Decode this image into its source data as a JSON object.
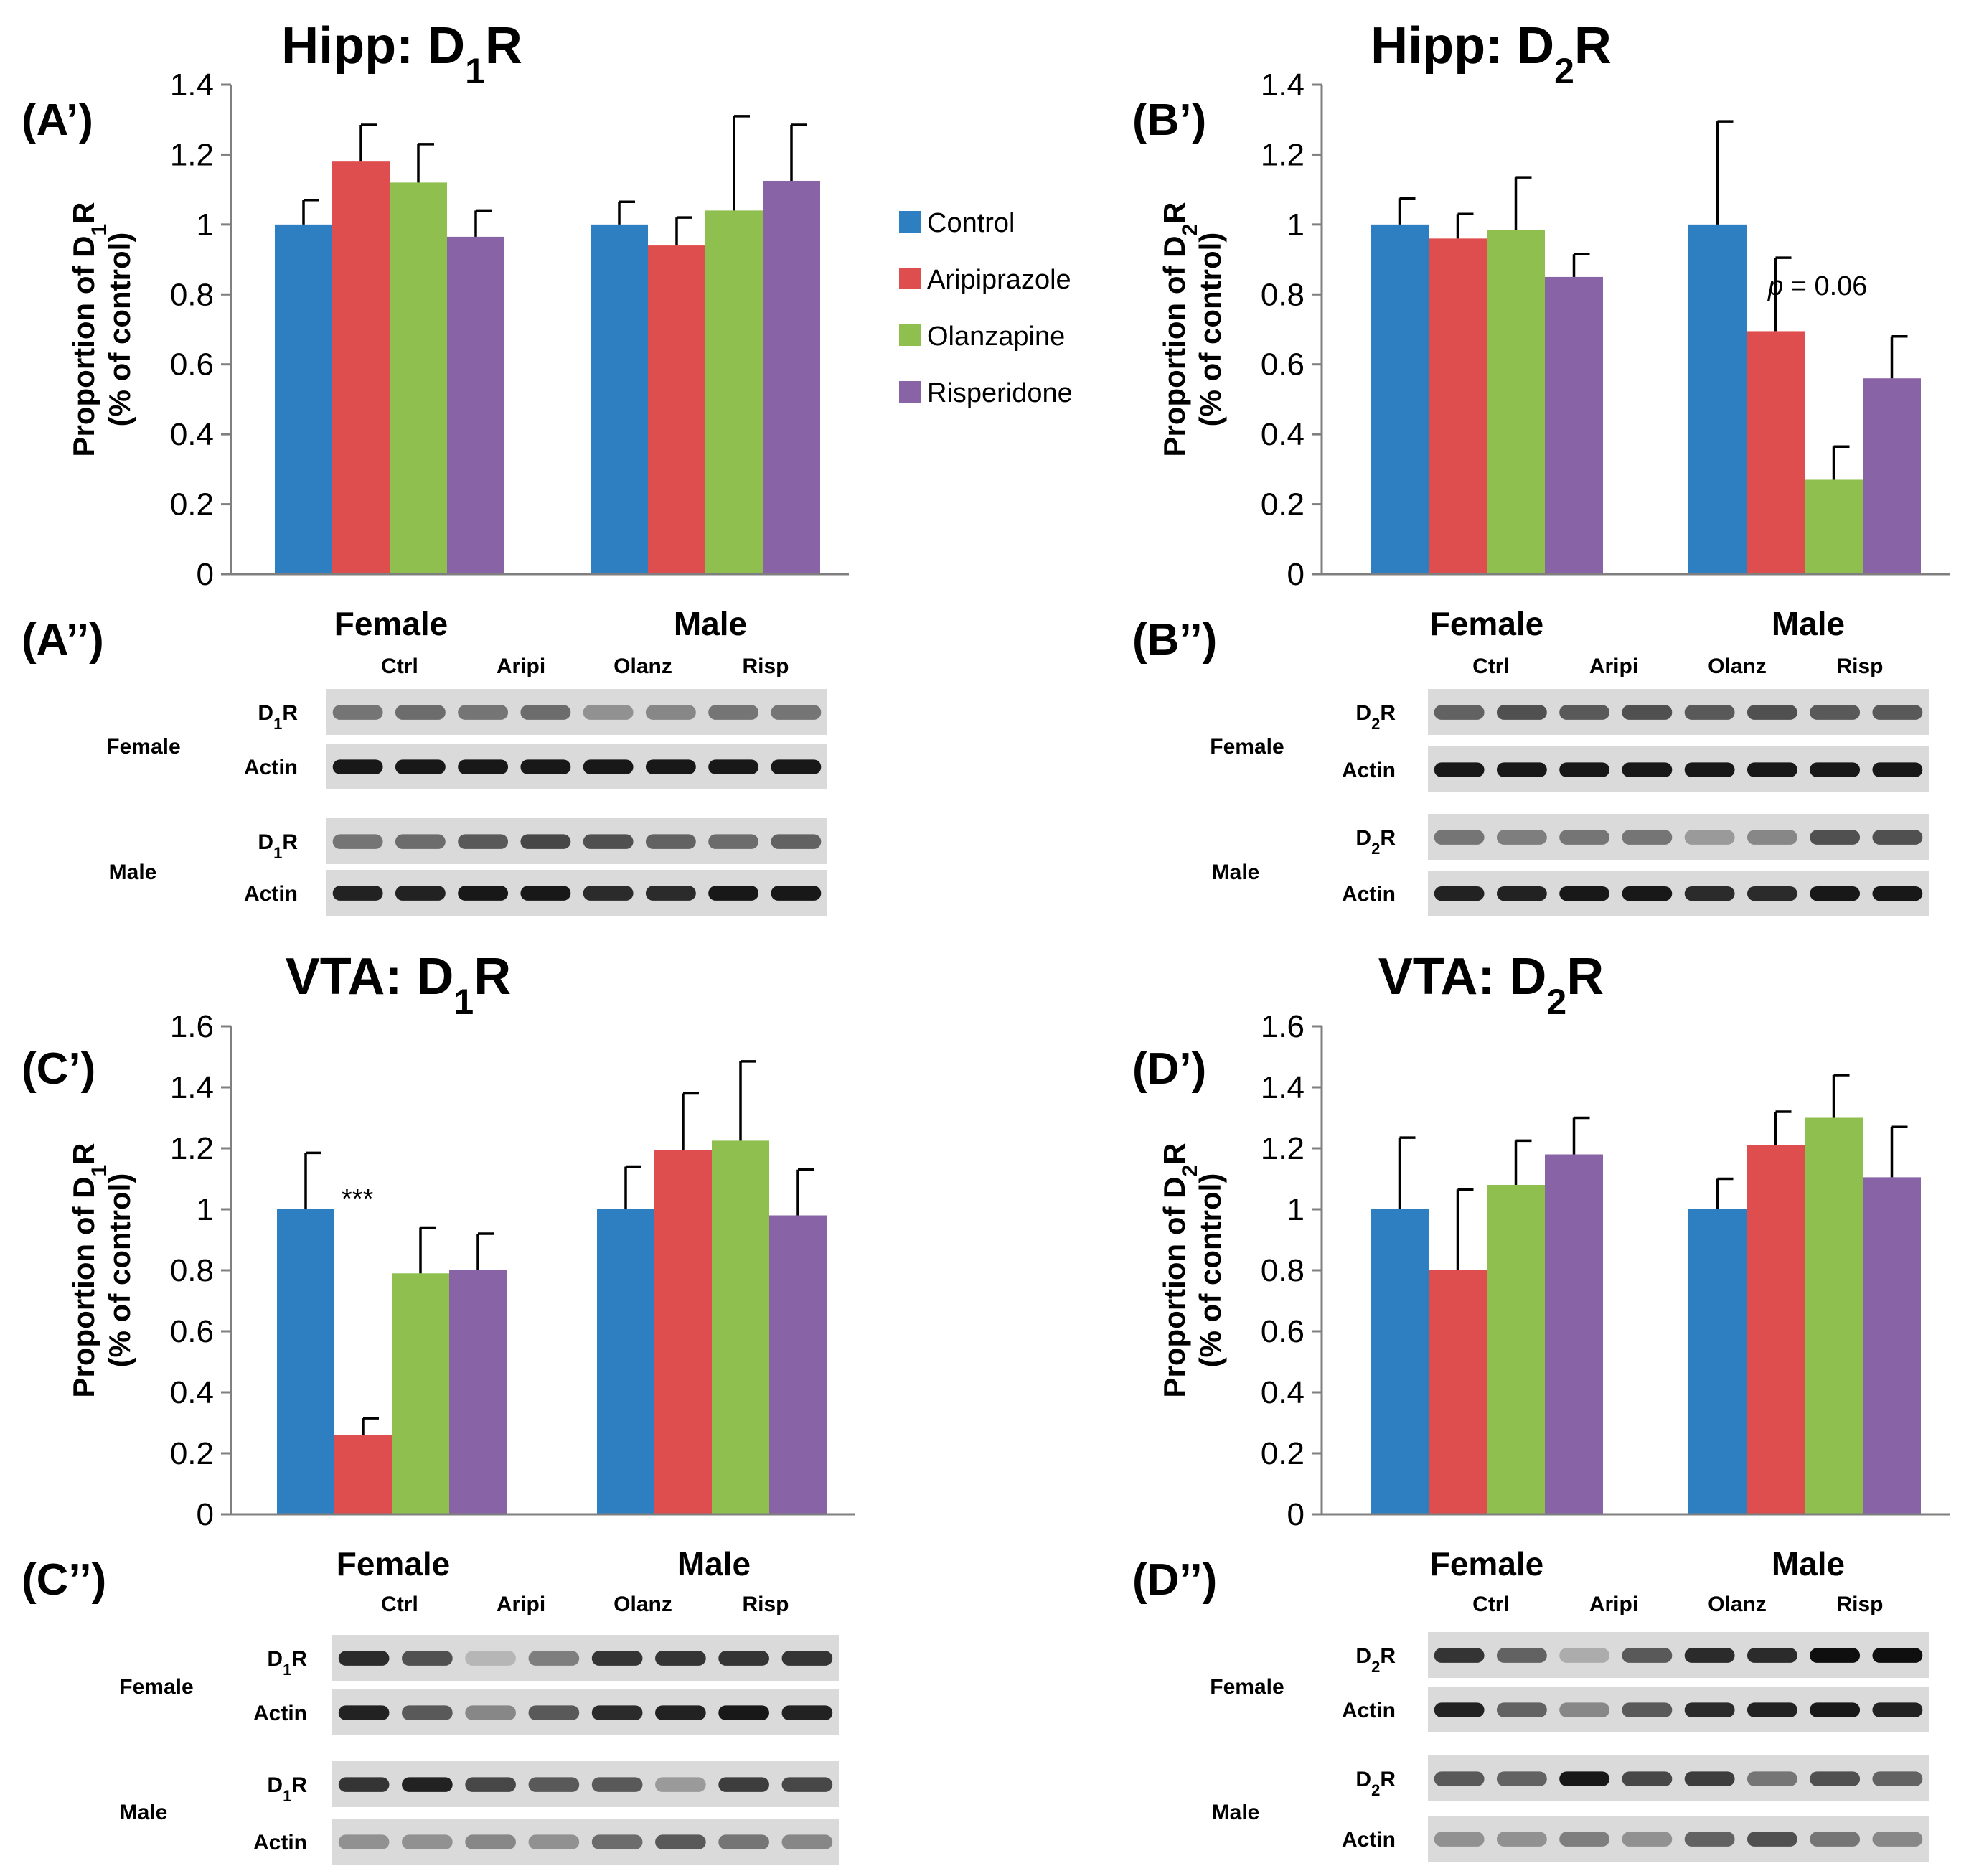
{
  "legend": [
    {
      "label": "Control",
      "color": "#2e7fc1"
    },
    {
      "label": "Aripiprazole",
      "color": "#df4e4e"
    },
    {
      "label": "Olanzapine",
      "color": "#8fbf4e"
    },
    {
      "label": "Risperidone",
      "color": "#8864a7"
    }
  ],
  "chart_data": [
    {
      "panel": "(A’)",
      "type": "bar",
      "title": "Hipp: D1R",
      "categories": [
        "Female",
        "Male"
      ],
      "ylabel": "Proportion of D1R (% of control)",
      "ylim": [
        0,
        1.4
      ],
      "yticks": [
        "0",
        "0.2",
        "0.4",
        "0.6",
        "0.8",
        "1",
        "1.2",
        "1.4"
      ],
      "series": [
        {
          "name": "Control",
          "values": [
            1.0,
            1.0
          ],
          "errors": [
            0.07,
            0.065
          ]
        },
        {
          "name": "Aripiprazole",
          "values": [
            1.18,
            0.94
          ],
          "errors": [
            0.105,
            0.08
          ]
        },
        {
          "name": "Olanzapine",
          "values": [
            1.12,
            1.04
          ],
          "errors": [
            0.11,
            0.27
          ]
        },
        {
          "name": "Risperidone",
          "values": [
            0.965,
            1.125
          ],
          "errors": [
            0.075,
            0.16
          ]
        }
      ],
      "annotations": []
    },
    {
      "panel": "(B’)",
      "type": "bar",
      "title": "Hipp: D2R",
      "categories": [
        "Female",
        "Male"
      ],
      "ylabel": "Proportion of D2R (% of control)",
      "ylim": [
        0,
        1.4
      ],
      "yticks": [
        "0",
        "0.2",
        "0.4",
        "0.6",
        "0.8",
        "1",
        "1.2",
        "1.4"
      ],
      "series": [
        {
          "name": "Control",
          "values": [
            1.0,
            1.0
          ],
          "errors": [
            0.075,
            0.295
          ]
        },
        {
          "name": "Aripiprazole",
          "values": [
            0.96,
            0.695
          ],
          "errors": [
            0.07,
            0.21
          ]
        },
        {
          "name": "Olanzapine",
          "values": [
            0.985,
            0.27
          ],
          "errors": [
            0.15,
            0.095
          ]
        },
        {
          "name": "Risperidone",
          "values": [
            0.85,
            0.56
          ],
          "errors": [
            0.065,
            0.12
          ]
        }
      ],
      "annotations": [
        {
          "text": "p = 0.06",
          "series": 1,
          "category": 1
        }
      ]
    },
    {
      "panel": "(C’)",
      "type": "bar",
      "title": "VTA: D1R",
      "categories": [
        "Female",
        "Male"
      ],
      "ylabel": "Proportion of D1R (% of control)",
      "ylim": [
        0,
        1.6
      ],
      "yticks": [
        "0",
        "0.2",
        "0.4",
        "0.6",
        "0.8",
        "1",
        "1.2",
        "1.4",
        "1.6"
      ],
      "series": [
        {
          "name": "Control",
          "values": [
            1.0,
            1.0
          ],
          "errors": [
            0.185,
            0.14
          ]
        },
        {
          "name": "Aripiprazole",
          "values": [
            0.26,
            1.195
          ],
          "errors": [
            0.055,
            0.185
          ]
        },
        {
          "name": "Olanzapine",
          "values": [
            0.79,
            1.225
          ],
          "errors": [
            0.15,
            0.26
          ]
        },
        {
          "name": "Risperidone",
          "values": [
            0.8,
            0.98
          ],
          "errors": [
            0.12,
            0.15
          ]
        }
      ],
      "annotations": [
        {
          "text": "***",
          "series": 1,
          "category": 0
        }
      ]
    },
    {
      "panel": "(D’)",
      "type": "bar",
      "title": "VTA: D2R",
      "categories": [
        "Female",
        "Male"
      ],
      "ylabel": "Proportion of D2R (% of control)",
      "ylim": [
        0,
        1.6
      ],
      "yticks": [
        "0",
        "0.2",
        "0.4",
        "0.6",
        "0.8",
        "1",
        "1.2",
        "1.4",
        "1.6"
      ],
      "series": [
        {
          "name": "Control",
          "values": [
            1.0,
            1.0
          ],
          "errors": [
            0.235,
            0.1
          ]
        },
        {
          "name": "Aripiprazole",
          "values": [
            0.8,
            1.21
          ],
          "errors": [
            0.265,
            0.11
          ]
        },
        {
          "name": "Olanzapine",
          "values": [
            1.08,
            1.3
          ],
          "errors": [
            0.145,
            0.14
          ]
        },
        {
          "name": "Risperidone",
          "values": [
            1.18,
            1.105
          ],
          "errors": [
            0.12,
            0.165
          ]
        }
      ],
      "annotations": []
    }
  ],
  "blots": [
    {
      "panel": "(A’’)",
      "groups": [
        "Female",
        "Male"
      ],
      "lanes": [
        "Ctrl",
        "Aripi",
        "Olanz",
        "Risp"
      ],
      "rows": [
        {
          "sex": "Female",
          "receptor": "D1R",
          "intensity": [
            0.45,
            0.5,
            0.45,
            0.5,
            0.3,
            0.35,
            0.45,
            0.45
          ]
        },
        {
          "sex": "Female",
          "actin": "Actin",
          "intensity": [
            0.95,
            0.95,
            0.95,
            0.95,
            0.95,
            0.95,
            0.95,
            0.95
          ]
        },
        {
          "sex": "Male",
          "receptor": "D1R",
          "intensity": [
            0.45,
            0.5,
            0.6,
            0.7,
            0.65,
            0.55,
            0.5,
            0.55
          ]
        },
        {
          "sex": "Male",
          "actin": "Actin",
          "intensity": [
            0.9,
            0.9,
            0.95,
            0.95,
            0.85,
            0.85,
            0.95,
            0.95
          ]
        }
      ]
    },
    {
      "panel": "(B’’)",
      "groups": [
        "Female",
        "Male"
      ],
      "lanes": [
        "Ctrl",
        "Aripi",
        "Olanz",
        "Risp"
      ],
      "rows": [
        {
          "sex": "Female",
          "receptor": "D2R",
          "intensity": [
            0.55,
            0.65,
            0.6,
            0.65,
            0.6,
            0.65,
            0.6,
            0.6
          ]
        },
        {
          "sex": "Female",
          "actin": "Actin",
          "intensity": [
            0.95,
            0.95,
            0.95,
            0.95,
            0.95,
            0.95,
            0.95,
            0.95
          ]
        },
        {
          "sex": "Male",
          "receptor": "D2R",
          "intensity": [
            0.45,
            0.4,
            0.45,
            0.45,
            0.25,
            0.35,
            0.65,
            0.65
          ]
        },
        {
          "sex": "Male",
          "actin": "Actin",
          "intensity": [
            0.9,
            0.9,
            0.95,
            0.95,
            0.85,
            0.85,
            0.95,
            0.95
          ]
        }
      ]
    },
    {
      "panel": "(C’’)",
      "groups": [
        "Female",
        "Male"
      ],
      "lanes": [
        "Ctrl",
        "Aripi",
        "Olanz",
        "Risp"
      ],
      "rows": [
        {
          "sex": "Female",
          "receptor": "D1R",
          "intensity": [
            0.85,
            0.65,
            0.1,
            0.4,
            0.8,
            0.8,
            0.8,
            0.8
          ]
        },
        {
          "sex": "Female",
          "actin": "Actin",
          "intensity": [
            0.9,
            0.6,
            0.35,
            0.6,
            0.85,
            0.9,
            0.95,
            0.9
          ]
        },
        {
          "sex": "Male",
          "receptor": "D1R",
          "intensity": [
            0.8,
            0.9,
            0.7,
            0.6,
            0.6,
            0.25,
            0.75,
            0.7
          ]
        },
        {
          "sex": "Male",
          "actin": "Actin",
          "intensity": [
            0.3,
            0.3,
            0.35,
            0.3,
            0.5,
            0.6,
            0.45,
            0.35
          ]
        }
      ]
    },
    {
      "panel": "(D’’)",
      "groups": [
        "Female",
        "Male"
      ],
      "lanes": [
        "Ctrl",
        "Aripi",
        "Olanz",
        "Risp"
      ],
      "rows": [
        {
          "sex": "Female",
          "receptor": "D2R",
          "intensity": [
            0.8,
            0.55,
            0.15,
            0.6,
            0.85,
            0.85,
            1.0,
            1.0
          ]
        },
        {
          "sex": "Female",
          "actin": "Actin",
          "intensity": [
            0.9,
            0.55,
            0.35,
            0.6,
            0.85,
            0.9,
            0.95,
            0.9
          ]
        },
        {
          "sex": "Male",
          "receptor": "D2R",
          "intensity": [
            0.6,
            0.55,
            0.95,
            0.7,
            0.75,
            0.45,
            0.65,
            0.55
          ]
        },
        {
          "sex": "Male",
          "actin": "Actin",
          "intensity": [
            0.3,
            0.3,
            0.4,
            0.3,
            0.55,
            0.65,
            0.45,
            0.35
          ]
        }
      ]
    }
  ]
}
